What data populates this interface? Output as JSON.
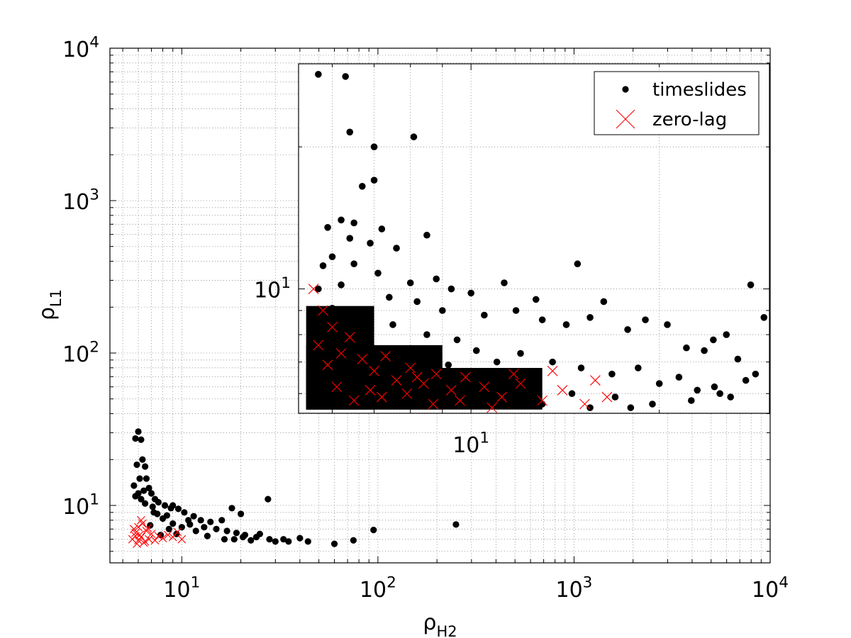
{
  "chart_data": [
    {
      "type": "scatter",
      "xlabel_base": "ρ",
      "xlabel_sub": "H2",
      "ylabel_base": "ρ",
      "ylabel_sub": "L1",
      "xscale": "log",
      "yscale": "log",
      "xlim": [
        4.3,
        10000
      ],
      "ylim": [
        4.2,
        10000
      ],
      "grid": true,
      "grid_style": "dotted",
      "legend_position": "top-right",
      "x_ticks": [
        {
          "value": 10,
          "base": "10",
          "exp": "1"
        },
        {
          "value": 100,
          "base": "10",
          "exp": "2"
        },
        {
          "value": 1000,
          "base": "10",
          "exp": "3"
        },
        {
          "value": 10000,
          "base": "10",
          "exp": "4"
        }
      ],
      "y_ticks": [
        {
          "value": 10,
          "base": "10",
          "exp": "1"
        },
        {
          "value": 100,
          "base": "10",
          "exp": "2"
        },
        {
          "value": 1000,
          "base": "10",
          "exp": "3"
        },
        {
          "value": 10000,
          "base": "10",
          "exp": "4"
        }
      ],
      "series": [
        {
          "name": "timeslides",
          "marker": "dot",
          "color": "#000000",
          "points": [
            [
              6.0,
              30.5
            ],
            [
              5.8,
              27.5
            ],
            [
              6.2,
              27.0
            ],
            [
              6.3,
              20.0
            ],
            [
              5.9,
              18.5
            ],
            [
              6.5,
              18.0
            ],
            [
              6.1,
              15.0
            ],
            [
              6.6,
              15.0
            ],
            [
              5.7,
              13.5
            ],
            [
              6.8,
              13.0
            ],
            [
              6.4,
              12.5
            ],
            [
              7.0,
              12.0
            ],
            [
              6.0,
              12.0
            ],
            [
              7.3,
              11.0
            ],
            [
              5.8,
              11.5
            ],
            [
              6.2,
              11.0
            ],
            [
              7.6,
              10.5
            ],
            [
              8.2,
              10.0
            ],
            [
              9.0,
              10.0
            ],
            [
              6.5,
              10.3
            ],
            [
              7.1,
              9.8
            ],
            [
              8.8,
              9.6
            ],
            [
              9.6,
              9.5
            ],
            [
              10.3,
              9.0
            ],
            [
              11.5,
              8.5
            ],
            [
              12.5,
              8.0
            ],
            [
              14.0,
              7.8
            ],
            [
              16.0,
              8.0
            ],
            [
              18.0,
              9.6
            ],
            [
              20.0,
              8.8
            ],
            [
              27.5,
              11.0
            ],
            [
              11.0,
              7.5
            ],
            [
              13.0,
              7.2
            ],
            [
              15.0,
              7.0
            ],
            [
              17.0,
              6.8
            ],
            [
              19.0,
              6.6
            ],
            [
              21.0,
              6.4
            ],
            [
              24.0,
              6.2
            ],
            [
              10.0,
              7.2
            ],
            [
              9.0,
              7.6
            ],
            [
              8.0,
              8.2
            ],
            [
              7.5,
              8.8
            ],
            [
              18.5,
              6.0
            ],
            [
              20.5,
              6.2
            ],
            [
              22.5,
              5.9
            ],
            [
              28.0,
              6.0
            ],
            [
              30.0,
              5.8
            ],
            [
              33.0,
              6.0
            ],
            [
              35.0,
              5.8
            ],
            [
              40.0,
              6.1
            ],
            [
              44.0,
              5.8
            ],
            [
              60.0,
              5.6
            ],
            [
              75.0,
              5.9
            ],
            [
              95.0,
              6.9
            ],
            [
              250.0,
              7.5
            ],
            [
              13.5,
              6.3
            ],
            [
              16.5,
              6.0
            ],
            [
              25.0,
              6.5
            ],
            [
              11.8,
              6.8
            ],
            [
              9.4,
              6.5
            ],
            [
              8.6,
              7.0
            ],
            [
              7.8,
              6.4
            ],
            [
              6.9,
              7.4
            ],
            [
              7.2,
              9.0
            ],
            [
              8.4,
              8.6
            ],
            [
              10.8,
              8.0
            ]
          ]
        },
        {
          "name": "zero-lag",
          "marker": "x",
          "color": "#ff0000",
          "points": [
            [
              5.6,
              6.0
            ],
            [
              5.8,
              6.6
            ],
            [
              6.0,
              7.2
            ],
            [
              6.2,
              6.2
            ],
            [
              6.4,
              5.7
            ],
            [
              6.6,
              6.8
            ],
            [
              5.9,
              5.6
            ],
            [
              6.1,
              6.4
            ],
            [
              6.3,
              7.6
            ],
            [
              6.8,
              6.0
            ],
            [
              7.0,
              6.5
            ],
            [
              5.7,
              7.0
            ],
            [
              6.5,
              5.8
            ],
            [
              7.3,
              5.9
            ],
            [
              7.6,
              6.3
            ],
            [
              8.0,
              6.1
            ],
            [
              8.5,
              6.4
            ],
            [
              9.0,
              6.2
            ],
            [
              9.5,
              6.7
            ],
            [
              10.0,
              6.0
            ],
            [
              6.2,
              8.0
            ],
            [
              6.0,
              5.9
            ],
            [
              5.8,
              6.3
            ],
            [
              6.7,
              7.1
            ]
          ]
        }
      ]
    },
    {
      "type": "scatter",
      "inset": true,
      "xscale": "log",
      "yscale": "log",
      "xlim": [
        5.3,
        30
      ],
      "ylim": [
        5.45,
        30
      ],
      "legend_position": "top-right",
      "x_ticks": [
        {
          "value": 10,
          "base": "10",
          "exp": "1"
        }
      ],
      "y_ticks": [
        {
          "value": 10,
          "base": "10",
          "exp": "1"
        }
      ],
      "series": [
        {
          "name": "timeslides",
          "marker": "dot",
          "color": "#000000",
          "points": [
            [
              5.7,
              28.5
            ],
            [
              6.3,
              28.2
            ],
            [
              7.0,
              20.0
            ],
            [
              6.4,
              21.5
            ],
            [
              8.1,
              21.0
            ],
            [
              7.0,
              17.0
            ],
            [
              6.7,
              16.5
            ],
            [
              5.9,
              13.5
            ],
            [
              6.2,
              14.0
            ],
            [
              6.5,
              13.8
            ],
            [
              7.2,
              13.4
            ],
            [
              6.4,
              12.8
            ],
            [
              6.9,
              12.5
            ],
            [
              7.6,
              12.2
            ],
            [
              8.5,
              13.0
            ],
            [
              6.0,
              11.7
            ],
            [
              5.8,
              11.2
            ],
            [
              6.5,
              11.3
            ],
            [
              7.1,
              10.8
            ],
            [
              8.0,
              10.3
            ],
            [
              8.8,
              10.5
            ],
            [
              9.3,
              10.0
            ],
            [
              10.0,
              9.8
            ],
            [
              11.3,
              10.3
            ],
            [
              12.7,
              9.5
            ],
            [
              14.8,
              11.3
            ],
            [
              5.7,
              10.0
            ],
            [
              6.2,
              10.2
            ],
            [
              7.4,
              9.6
            ],
            [
              8.2,
              9.4
            ],
            [
              9.0,
              9.0
            ],
            [
              10.5,
              8.8
            ],
            [
              11.8,
              9.0
            ],
            [
              13.0,
              8.6
            ],
            [
              14.2,
              8.4
            ],
            [
              15.5,
              8.7
            ],
            [
              16.3,
              9.4
            ],
            [
              17.8,
              8.2
            ],
            [
              19.0,
              8.6
            ],
            [
              20.6,
              8.4
            ],
            [
              22.1,
              7.5
            ],
            [
              23.6,
              7.4
            ],
            [
              24.4,
              7.8
            ],
            [
              25.6,
              8.0
            ],
            [
              26.7,
              7.1
            ],
            [
              28.0,
              10.2
            ],
            [
              29.4,
              8.7
            ],
            [
              6.0,
              9.1
            ],
            [
              6.8,
              8.9
            ],
            [
              7.5,
              8.4
            ],
            [
              8.5,
              8.0
            ],
            [
              9.5,
              7.8
            ],
            [
              10.2,
              7.4
            ],
            [
              11.0,
              7.0
            ],
            [
              12.0,
              7.3
            ],
            [
              13.5,
              7.0
            ],
            [
              15.0,
              6.8
            ],
            [
              16.8,
              6.6
            ],
            [
              18.5,
              6.8
            ],
            [
              20.0,
              6.3
            ],
            [
              21.5,
              6.5
            ],
            [
              23.0,
              6.1
            ],
            [
              24.5,
              6.2
            ],
            [
              26.0,
              5.9
            ],
            [
              27.5,
              6.4
            ],
            [
              5.9,
              8.1
            ],
            [
              6.6,
              7.8
            ],
            [
              7.8,
              7.4
            ],
            [
              9.2,
              6.9
            ],
            [
              10.8,
              6.5
            ],
            [
              12.5,
              6.2
            ],
            [
              14.5,
              6.0
            ],
            [
              17.0,
              5.9
            ],
            [
              19.5,
              5.7
            ],
            [
              22.5,
              5.8
            ],
            [
              25.0,
              6.0
            ],
            [
              28.5,
              6.6
            ],
            [
              6.3,
              7.2
            ],
            [
              7.1,
              6.9
            ],
            [
              8.6,
              6.6
            ],
            [
              10.0,
              6.3
            ],
            [
              11.5,
              5.9
            ],
            [
              13.0,
              5.7
            ],
            [
              15.5,
              5.6
            ],
            [
              18.0,
              5.6
            ]
          ]
        },
        {
          "name": "zero-lag",
          "marker": "x",
          "color": "#ff0000",
          "points": [
            [
              5.6,
              10.0
            ],
            [
              5.8,
              9.0
            ],
            [
              6.0,
              8.3
            ],
            [
              5.7,
              7.6
            ],
            [
              6.2,
              7.3
            ],
            [
              6.4,
              7.9
            ],
            [
              6.7,
              7.1
            ],
            [
              7.0,
              6.7
            ],
            [
              7.3,
              7.2
            ],
            [
              7.6,
              6.4
            ],
            [
              8.0,
              6.8
            ],
            [
              8.4,
              6.3
            ],
            [
              8.8,
              6.6
            ],
            [
              9.3,
              6.1
            ],
            [
              9.8,
              6.5
            ],
            [
              10.5,
              6.2
            ],
            [
              11.2,
              5.9
            ],
            [
              12.0,
              6.3
            ],
            [
              13.0,
              5.8
            ],
            [
              14.0,
              6.1
            ],
            [
              15.2,
              5.7
            ],
            [
              16.5,
              5.9
            ],
            [
              6.1,
              6.2
            ],
            [
              6.5,
              5.8
            ],
            [
              7.2,
              5.9
            ],
            [
              7.9,
              6.0
            ],
            [
              8.7,
              5.7
            ],
            [
              9.6,
              5.8
            ],
            [
              10.8,
              5.6
            ],
            [
              5.9,
              6.9
            ],
            [
              6.9,
              6.1
            ],
            [
              8.2,
              6.5
            ],
            [
              11.7,
              6.6
            ],
            [
              13.5,
              6.7
            ],
            [
              15.8,
              6.4
            ]
          ]
        }
      ]
    }
  ]
}
